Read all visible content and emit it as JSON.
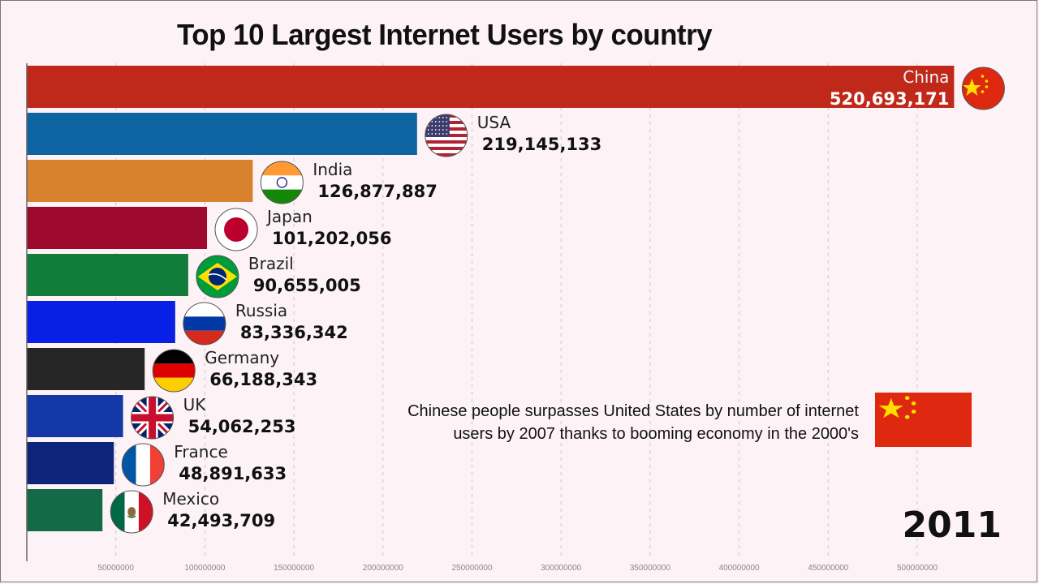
{
  "page": {
    "title": "Top 10 Largest Internet Users by country",
    "year": "2011",
    "annotation": {
      "text": "Chinese people surpasses United States by number of internet users by 2007 thanks to booming economy in the 2000's",
      "flag": "china-flag"
    }
  },
  "chart_data": {
    "type": "bar",
    "orientation": "horizontal",
    "title": "Top 10 Largest Internet Users by country",
    "xlabel": "",
    "ylabel": "",
    "xlim": [
      0,
      520000000
    ],
    "grid": true,
    "x_ticks": [
      50000000,
      100000000,
      150000000,
      200000000,
      250000000,
      300000000,
      350000000,
      400000000,
      450000000,
      500000000
    ],
    "x_tick_labels": [
      "50000000",
      "100000000",
      "150000000",
      "200000000",
      "250000000",
      "300000000",
      "350000000",
      "400000000",
      "450000000",
      "500000000"
    ],
    "categories": [
      "China",
      "USA",
      "India",
      "Japan",
      "Brazil",
      "Russia",
      "Germany",
      "UK",
      "France",
      "Mexico"
    ],
    "values": [
      520693171,
      219145133,
      126877887,
      101202056,
      90655005,
      83336342,
      66188343,
      54062253,
      48891633,
      42493709
    ],
    "value_labels": [
      "520,693,171",
      "219,145,133",
      "126,877,887",
      "101,202,056",
      "90,655,005",
      "83,336,342",
      "66,188,343",
      "54,062,253",
      "48,891,633",
      "42,493,709"
    ],
    "colors": [
      "#c0281a",
      "#0e64a0",
      "#d8822e",
      "#9e0a2e",
      "#127c3a",
      "#0a1fe6",
      "#262626",
      "#1438a8",
      "#0e237a",
      "#146a46"
    ],
    "flags": [
      "china-flag",
      "usa-flag",
      "india-flag",
      "japan-flag",
      "brazil-flag",
      "russia-flag",
      "germany-flag",
      "uk-flag",
      "france-flag",
      "mexico-flag"
    ],
    "label_inside": [
      true,
      false,
      false,
      false,
      false,
      false,
      false,
      false,
      false,
      false
    ]
  }
}
